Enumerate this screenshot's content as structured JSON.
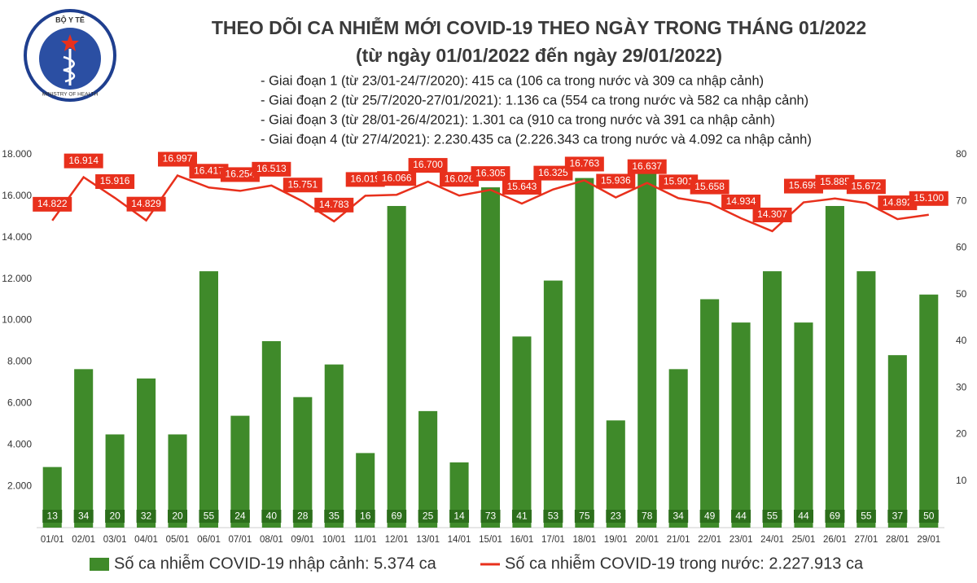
{
  "logo": {
    "top": "BỘ Y TẾ",
    "bottom": "MINISTRY OF HEALTH"
  },
  "chart_data": {
    "type": "combo",
    "title": "THEO DÕI CA NHIỄM MỚI COVID-19 THEO NGÀY TRONG THÁNG 01/2022",
    "subtitle": "(từ ngày 01/01/2022 đến ngày 29/01/2022)",
    "notes": [
      "- Giai đoạn 1 (từ 23/01-24/7/2020): 415 ca (106 ca trong nước và 309 ca nhập cảnh)",
      "- Giai đoạn 2 (từ 25/7/2020-27/01/2021): 1.136 ca (554 ca trong nước và 582 ca nhập cảnh)",
      "- Giai đoạn 3 (từ 28/01-26/4/2021): 1.301 ca (910 ca trong nước và 391 ca nhập cảnh)",
      "- Giai đoạn 4 (từ 27/4/2021): 2.230.435 ca (2.226.343 ca trong nước và 4.092 ca nhập cảnh)"
    ],
    "categories": [
      "01/01",
      "02/01",
      "03/01",
      "04/01",
      "05/01",
      "06/01",
      "07/01",
      "08/01",
      "09/01",
      "10/01",
      "11/01",
      "12/01",
      "13/01",
      "14/01",
      "15/01",
      "16/01",
      "17/01",
      "18/01",
      "19/01",
      "20/01",
      "21/01",
      "22/01",
      "23/01",
      "24/01",
      "25/01",
      "26/01",
      "27/01",
      "28/01",
      "29/01"
    ],
    "series": [
      {
        "name": "Số ca nhiễm COVID-19 nhập cảnh: 5.374 ca",
        "type": "bar",
        "axis": "y2",
        "color": "#3f8a2a",
        "values": [
          13,
          34,
          20,
          32,
          20,
          55,
          24,
          40,
          28,
          35,
          16,
          69,
          25,
          14,
          73,
          41,
          53,
          75,
          23,
          78,
          34,
          49,
          44,
          55,
          44,
          69,
          55,
          37,
          50
        ]
      },
      {
        "name": "Số ca nhiễm COVID-19 trong nước: 2.227.913 ca",
        "type": "line",
        "color": "#e8301c",
        "values": [
          14822,
          16914,
          15916,
          14829,
          16997,
          16417,
          16254,
          16513,
          15751,
          14783,
          16019,
          16066,
          16700,
          16026,
          16305,
          15643,
          16325,
          16763,
          15936,
          16637,
          15901,
          15658,
          14934,
          14307,
          15699,
          15885,
          15672,
          14892,
          15100
        ],
        "value_labels": [
          "14.822",
          "16.914",
          "15.916",
          "14.829",
          "16.997",
          "16.417",
          "16.254",
          "16.513",
          "15.751",
          "14.783",
          "16.019",
          "16.066",
          "16.700",
          "16.026",
          "16.305",
          "15.643",
          "16.325",
          "16.763",
          "15.936",
          "16.637",
          "15.901",
          "15.658",
          "14.934",
          "14.307",
          "15.699",
          "15.885",
          "15.672",
          "14.892",
          "15.100"
        ]
      }
    ],
    "ylim": [
      0,
      18000
    ],
    "yticks": [
      {
        "value": 2000,
        "label": "2.000"
      },
      {
        "value": 4000,
        "label": "4.000"
      },
      {
        "value": 6000,
        "label": "6.000"
      },
      {
        "value": 8000,
        "label": "8.000"
      },
      {
        "value": 10000,
        "label": "10.000"
      },
      {
        "value": 12000,
        "label": "12.000"
      },
      {
        "value": 14000,
        "label": "14.000"
      },
      {
        "value": 16000,
        "label": "16.000"
      },
      {
        "value": 18000,
        "label": "18.000"
      }
    ],
    "y2lim": [
      0,
      80
    ],
    "y2ticks": [
      10,
      20,
      30,
      40,
      50,
      60,
      70,
      80
    ],
    "grid": false
  }
}
